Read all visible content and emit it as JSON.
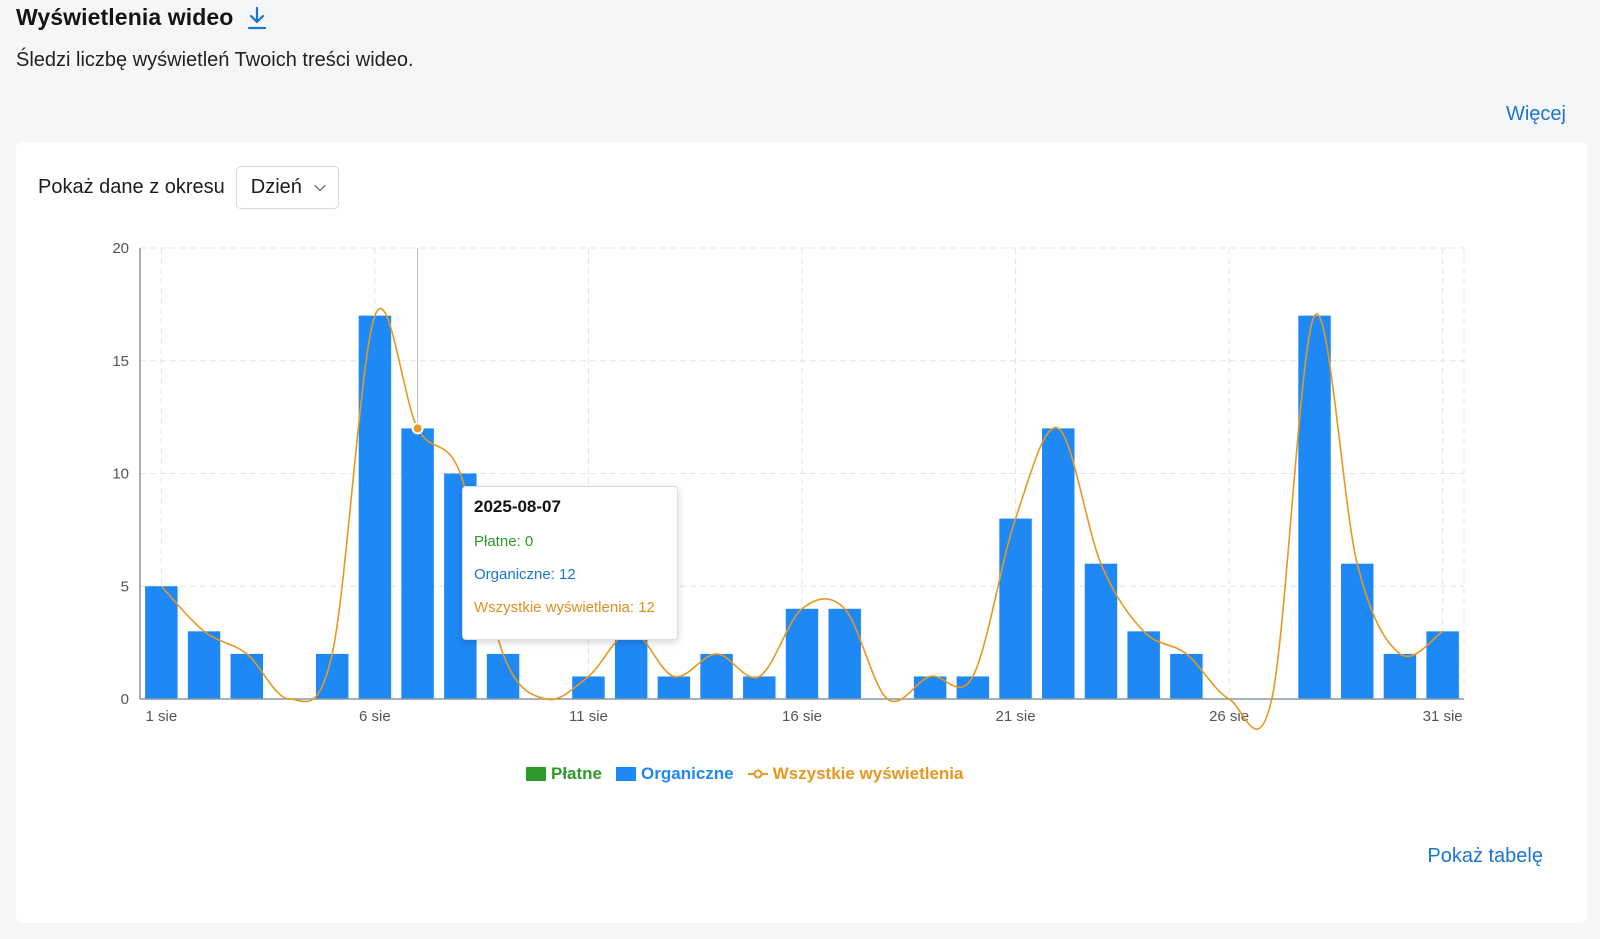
{
  "header": {
    "title": "Wyświetlenia wideo",
    "subtitle": "Śledzi liczbę wyświetleń Twoich treści wideo.",
    "more_link": "Więcej"
  },
  "controls": {
    "period_label": "Pokaż dane z okresu",
    "period_value": "Dzień"
  },
  "tooltip": {
    "date": "2025-08-07",
    "paid": "Płatne: 0",
    "organic": "Organiczne: 12",
    "all": "Wszystkie wyświetlenia: 12"
  },
  "legend": {
    "paid": "Płatne",
    "organic": "Organiczne",
    "all": "Wszystkie wyświetlenia"
  },
  "footer": {
    "show_table": "Pokaż tabelę"
  },
  "colors": {
    "paid": "#2e9a2c",
    "organic": "#1e88f5",
    "all": "#e8971f",
    "link": "#1a76d2"
  },
  "icons": {
    "download": "download-icon",
    "dropdown": "chevron-down-icon"
  },
  "chart_data": {
    "type": "bar",
    "categories": [
      "1 sie",
      "2 sie",
      "3 sie",
      "4 sie",
      "5 sie",
      "6 sie",
      "7 sie",
      "8 sie",
      "9 sie",
      "10 sie",
      "11 sie",
      "12 sie",
      "13 sie",
      "14 sie",
      "15 sie",
      "16 sie",
      "17 sie",
      "18 sie",
      "19 sie",
      "20 sie",
      "21 sie",
      "22 sie",
      "23 sie",
      "24 sie",
      "25 sie",
      "26 sie",
      "27 sie",
      "28 sie",
      "29 sie",
      "30 sie",
      "31 sie"
    ],
    "x_tick_labels": [
      "1 sie",
      "6 sie",
      "11 sie",
      "16 sie",
      "21 sie",
      "26 sie",
      "31 sie"
    ],
    "y_ticks": [
      0,
      5,
      10,
      15,
      20
    ],
    "ylim": [
      0,
      20
    ],
    "series": [
      {
        "name": "Płatne",
        "type": "bar",
        "values": [
          0,
          0,
          0,
          0,
          0,
          0,
          0,
          0,
          0,
          0,
          0,
          0,
          0,
          0,
          0,
          0,
          0,
          0,
          0,
          0,
          0,
          0,
          0,
          0,
          0,
          0,
          0,
          0,
          0,
          0,
          0
        ]
      },
      {
        "name": "Organiczne",
        "type": "bar",
        "values": [
          5,
          3,
          2,
          0,
          2,
          17,
          12,
          10,
          2,
          0,
          1,
          3,
          1,
          2,
          1,
          4,
          4,
          0,
          1,
          1,
          8,
          12,
          6,
          3,
          2,
          0,
          0,
          17,
          6,
          2,
          3
        ]
      },
      {
        "name": "Wszystkie wyświetlenia",
        "type": "line",
        "values": [
          5,
          3,
          2,
          0,
          2,
          17,
          12,
          10,
          2,
          0,
          1,
          3,
          1,
          2,
          1,
          4,
          4,
          0,
          1,
          1,
          8,
          12,
          6,
          3,
          2,
          0,
          0,
          17,
          6,
          2,
          3
        ]
      }
    ],
    "highlighted_index": 6,
    "grid": true,
    "legend_position": "bottom-center"
  }
}
